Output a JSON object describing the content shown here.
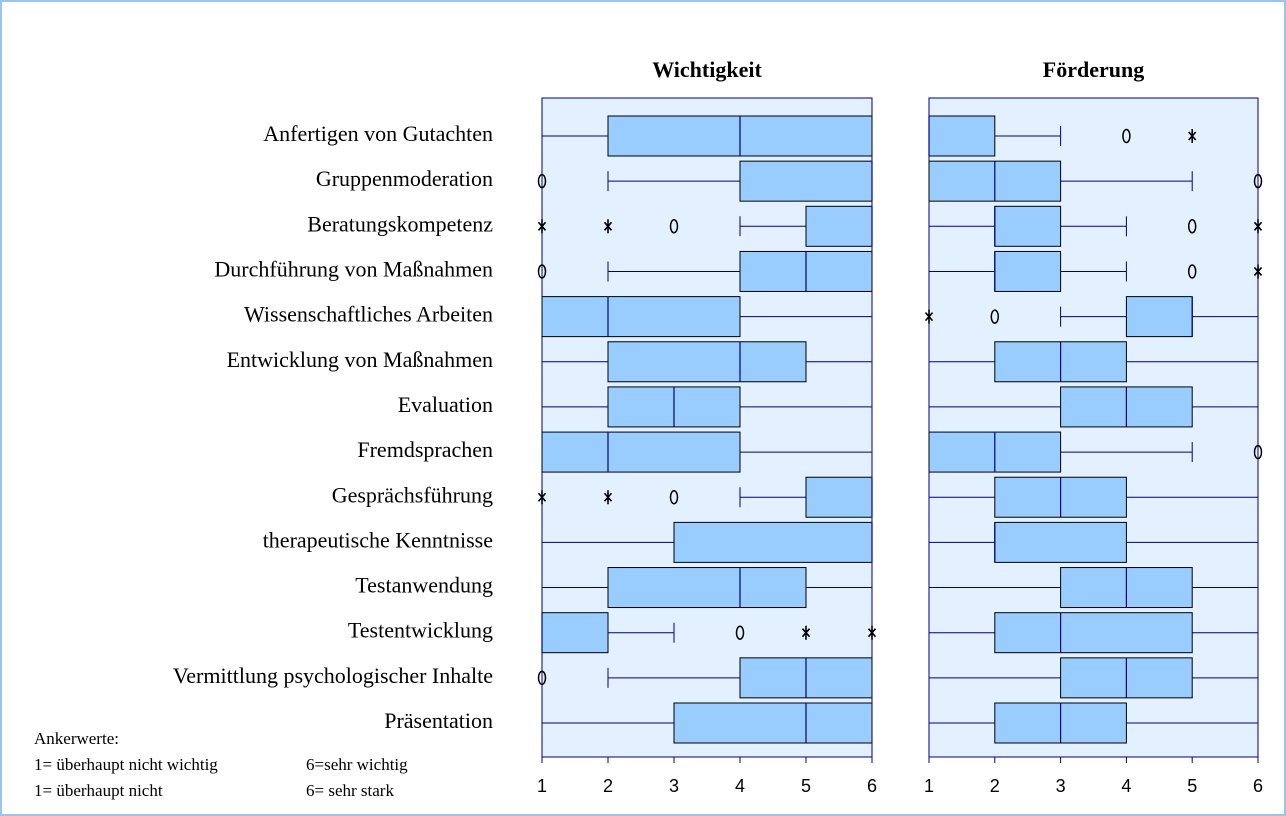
{
  "chart_data": [
    {
      "type": "boxplot",
      "title": "Wichtigkeit",
      "categories": [
        "Anfertigen von Gutachten",
        "Gruppenmoderation",
        "Beratungskompetenz",
        "Durchführung von Maßnahmen",
        "Wissenschaftliches Arbeiten",
        "Entwicklung von Maßnahmen",
        "Evaluation",
        "Fremdsprachen",
        "Gesprächsführung",
        "therapeutische Kenntnisse",
        "Testanwendung",
        "Testentwicklung",
        "Vermittlung psychologischer Inhalte",
        "Präsentation"
      ],
      "low": [
        1,
        2,
        4,
        2,
        1,
        1,
        1,
        1,
        4,
        1,
        1,
        1,
        2,
        1
      ],
      "q1": [
        2,
        4,
        5,
        4,
        1,
        2,
        2,
        1,
        5,
        3,
        2,
        1,
        4,
        3
      ],
      "median": [
        4,
        6,
        6,
        5,
        2,
        4,
        3,
        2,
        6,
        6,
        4,
        1,
        5,
        5
      ],
      "q3": [
        6,
        6,
        6,
        6,
        4,
        5,
        4,
        4,
        6,
        6,
        5,
        2,
        6,
        6
      ],
      "high": [
        6,
        6,
        6,
        6,
        6,
        6,
        6,
        6,
        6,
        6,
        6,
        3,
        6,
        6
      ],
      "outliers": [
        [],
        [
          1
        ],
        [
          3
        ],
        [
          1
        ],
        [],
        [],
        [],
        [],
        [
          3
        ],
        [],
        [],
        [
          4
        ],
        [
          1
        ],
        []
      ],
      "extremes": [
        [],
        [],
        [
          1,
          2
        ],
        [],
        [],
        [],
        [],
        [],
        [
          1,
          2
        ],
        [],
        [],
        [
          5,
          6
        ],
        [],
        []
      ],
      "xlim": [
        1,
        6
      ],
      "xticks": [
        1,
        2,
        3,
        4,
        5,
        6
      ],
      "color": "#99ccff"
    },
    {
      "type": "boxplot",
      "title": "Förderung",
      "low": [
        1,
        1,
        1,
        1,
        3,
        1,
        1,
        1,
        1,
        1,
        1,
        1,
        1,
        1
      ],
      "q1": [
        1,
        1,
        2,
        2,
        4,
        2,
        3,
        1,
        2,
        2,
        3,
        2,
        3,
        2
      ],
      "median": [
        1,
        2,
        2,
        2,
        5,
        3,
        4,
        2,
        3,
        2,
        4,
        3,
        4,
        3
      ],
      "q3": [
        2,
        3,
        3,
        3,
        5,
        4,
        5,
        3,
        4,
        4,
        5,
        5,
        5,
        4
      ],
      "high": [
        3,
        5,
        4,
        4,
        6,
        6,
        6,
        5,
        6,
        6,
        6,
        6,
        6,
        6
      ],
      "outliers": [
        [
          4
        ],
        [
          6
        ],
        [
          5
        ],
        [
          5
        ],
        [
          2
        ],
        [],
        [],
        [
          6
        ],
        [],
        [],
        [],
        [],
        [],
        []
      ],
      "extremes": [
        [
          5
        ],
        [],
        [
          6
        ],
        [
          6
        ],
        [
          1
        ],
        [],
        [],
        [],
        [],
        [],
        [],
        [],
        [],
        []
      ],
      "xlim": [
        1,
        6
      ],
      "xticks": [
        1,
        2,
        3,
        4,
        5,
        6
      ],
      "color": "#99ccff"
    }
  ],
  "notes": {
    "heading": "Ankerwerte:",
    "lines": [
      [
        "1= überhaupt nicht wichtig",
        "6=sehr wichtig"
      ],
      [
        "1= überhaupt nicht",
        "6= sehr stark"
      ]
    ]
  }
}
